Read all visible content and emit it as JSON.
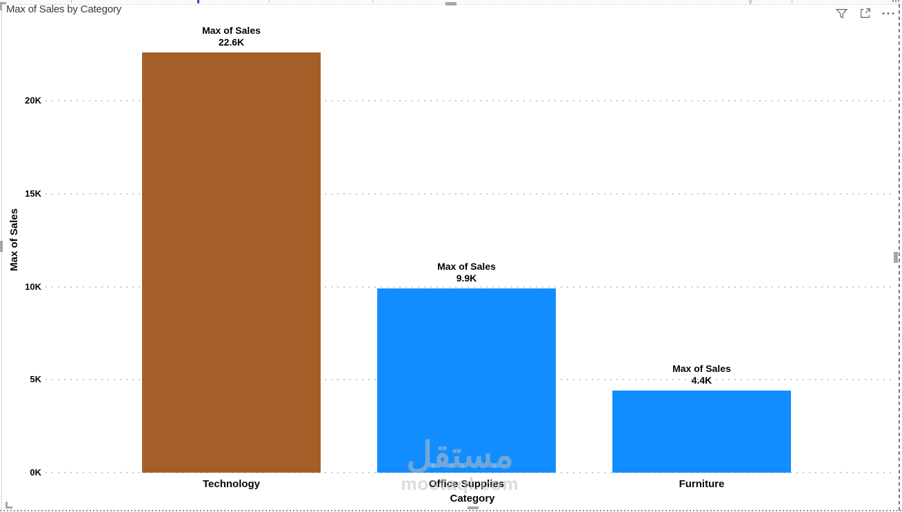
{
  "toolbar": {
    "filter_icon": "filter-funnel",
    "focus_icon": "focus-mode",
    "more_icon": "more-options"
  },
  "chart_data": {
    "type": "bar",
    "title": "Max of Sales by Category",
    "series_name": "Max of Sales",
    "categories": [
      "Technology",
      "Office Supplies",
      "Furniture"
    ],
    "values": [
      22.6,
      9.9,
      4.4
    ],
    "value_labels": [
      "22.6K",
      "9.9K",
      "4.4K"
    ],
    "bar_colors": [
      "#A65E28",
      "#118DFF",
      "#118DFF"
    ],
    "xlabel": "Category",
    "ylabel": "Max of Sales",
    "y_ticks": [
      "0K",
      "5K",
      "10K",
      "15K",
      "20K"
    ],
    "y_tick_values": [
      0,
      5,
      10,
      15,
      20
    ],
    "ylim": [
      0,
      20
    ],
    "grid": "dotted",
    "data_labels_on": true,
    "legend": "none"
  },
  "watermark": {
    "arabic": "مستقل",
    "latin": "mostaql.com"
  }
}
